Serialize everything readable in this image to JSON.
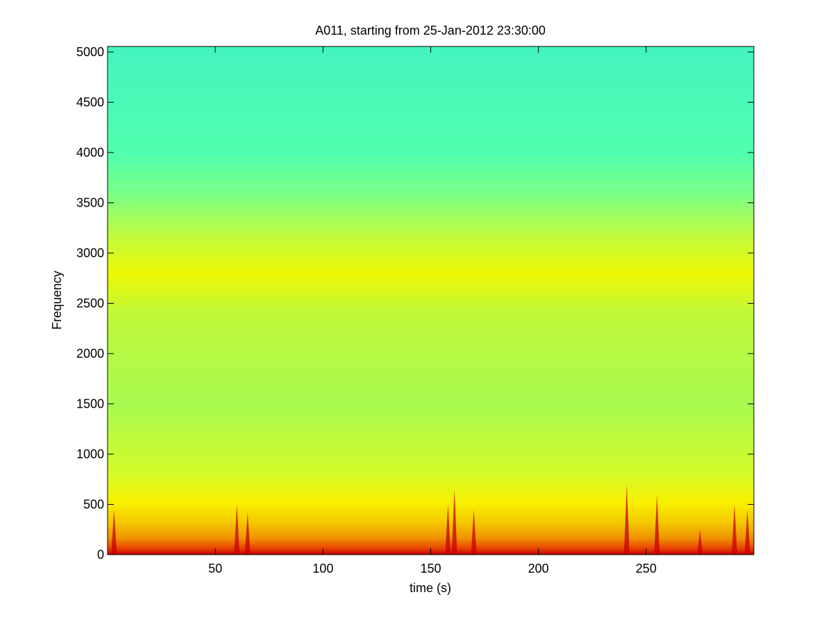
{
  "chart_data": {
    "type": "spectrogram",
    "title": "A011, starting from 25-Jan-2012 23:30:00",
    "x_label": "time (s)",
    "y_label": "Frequency",
    "xlim": [
      0,
      300
    ],
    "xticks": [
      50,
      100,
      150,
      200,
      250
    ],
    "ylim": [
      0,
      5055
    ],
    "yticks": [
      0,
      500,
      1000,
      1500,
      2000,
      2500,
      3000,
      3500,
      4000,
      4500,
      5000
    ],
    "color_stops": [
      {
        "frequency": 0,
        "color": "#c00000"
      },
      {
        "frequency": 60,
        "color": "#e84000"
      },
      {
        "frequency": 160,
        "color": "#f09000"
      },
      {
        "frequency": 320,
        "color": "#f4c800"
      },
      {
        "frequency": 520,
        "color": "#f8f000"
      },
      {
        "frequency": 800,
        "color": "#d4fa28"
      },
      {
        "frequency": 1500,
        "color": "#a8fa50"
      },
      {
        "frequency": 2400,
        "color": "#c0f838"
      },
      {
        "frequency": 2800,
        "color": "#ecf804"
      },
      {
        "frequency": 3150,
        "color": "#c4fa3c"
      },
      {
        "frequency": 3600,
        "color": "#78ff88"
      },
      {
        "frequency": 4000,
        "color": "#50ffae"
      },
      {
        "frequency": 5055,
        "color": "#44f4c0"
      }
    ],
    "burst_color": "#c80000",
    "bursts": [
      {
        "time": 3,
        "max_frequency": 450
      },
      {
        "time": 60,
        "max_frequency": 500
      },
      {
        "time": 65,
        "max_frequency": 420
      },
      {
        "time": 158,
        "max_frequency": 500
      },
      {
        "time": 161,
        "max_frequency": 650
      },
      {
        "time": 170,
        "max_frequency": 450
      },
      {
        "time": 241,
        "max_frequency": 700
      },
      {
        "time": 255,
        "max_frequency": 600
      },
      {
        "time": 275,
        "max_frequency": 250
      },
      {
        "time": 291,
        "max_frequency": 500
      },
      {
        "time": 297,
        "max_frequency": 450
      }
    ]
  }
}
